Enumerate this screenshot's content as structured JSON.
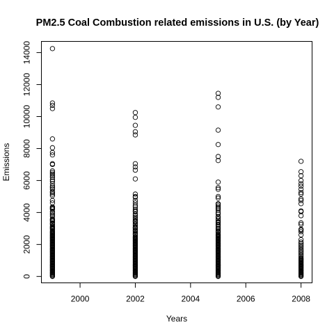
{
  "chart_data": {
    "type": "scatter",
    "title": "PM2.5 Coal Combustion related emissions in U.S. (by Year)",
    "xlabel": "Years",
    "ylabel": "Emissions",
    "xlim": [
      1998.6,
      2008.4
    ],
    "ylim": [
      -400,
      14700
    ],
    "x_ticks": [
      2000,
      2002,
      2004,
      2006,
      2008
    ],
    "y_ticks": [
      0,
      2000,
      4000,
      6000,
      8000,
      10000,
      12000,
      14000
    ],
    "grid": false,
    "marker": "open-circle",
    "series": [
      {
        "x_value": 1999,
        "values": [
          14250,
          10850,
          10700,
          10500,
          8600,
          8050,
          7750,
          7600,
          7050,
          7000,
          6600,
          6500,
          6400,
          6300,
          6200,
          6050,
          5950,
          5800,
          5650,
          5550,
          5450,
          5300,
          5250,
          5150,
          5050,
          4750,
          4600,
          4350,
          4300,
          4250,
          4200,
          4050,
          3950,
          3850,
          3750,
          3600,
          3550,
          3500,
          3450,
          3350,
          3300,
          3250,
          3150,
          3100,
          3050,
          3000,
          2950,
          2850,
          2800,
          2750,
          2700,
          2650,
          2600,
          2550,
          2500,
          2450,
          2400,
          2350,
          2300,
          2250,
          2200,
          2150,
          2100,
          2050,
          2000,
          1950,
          1900,
          1850,
          1800,
          1750,
          1700,
          1650,
          1600,
          1550,
          1500,
          1450,
          1400,
          1350,
          1300,
          1250,
          1200,
          1150,
          1100,
          1050,
          1000,
          950,
          900,
          850,
          800,
          750,
          700,
          650,
          600,
          550,
          500,
          450,
          400,
          350,
          300,
          250,
          200,
          150,
          100,
          50,
          0
        ]
      },
      {
        "x_value": 2002,
        "values": [
          10250,
          9950,
          9450,
          9050,
          8850,
          7050,
          6850,
          6650,
          6100,
          5150,
          5000,
          4950,
          4750,
          4600,
          4450,
          4350,
          4200,
          4100,
          4050,
          3900,
          3800,
          3700,
          3600,
          3500,
          3450,
          3400,
          3300,
          3200,
          3100,
          3050,
          3000,
          2900,
          2850,
          2800,
          2700,
          2650,
          2600,
          2500,
          2450,
          2400,
          2350,
          2300,
          2250,
          2200,
          2150,
          2100,
          2050,
          2000,
          1950,
          1900,
          1850,
          1800,
          1750,
          1700,
          1650,
          1600,
          1550,
          1500,
          1450,
          1400,
          1350,
          1300,
          1250,
          1200,
          1150,
          1100,
          1050,
          1000,
          950,
          900,
          850,
          800,
          750,
          700,
          650,
          600,
          550,
          500,
          450,
          400,
          350,
          300,
          250,
          200,
          150,
          100,
          50,
          0
        ]
      },
      {
        "x_value": 2005,
        "values": [
          11450,
          11200,
          10600,
          9150,
          8250,
          7500,
          7250,
          5900,
          5550,
          5450,
          5000,
          4900,
          4550,
          4500,
          4400,
          4300,
          4250,
          4150,
          4000,
          3900,
          3750,
          3700,
          3600,
          3500,
          3400,
          3350,
          3250,
          3200,
          3100,
          3000,
          2950,
          2850,
          2800,
          2750,
          2650,
          2600,
          2550,
          2500,
          2450,
          2400,
          2350,
          2300,
          2250,
          2200,
          2150,
          2100,
          2050,
          2000,
          1950,
          1900,
          1850,
          1800,
          1750,
          1700,
          1650,
          1600,
          1550,
          1500,
          1450,
          1400,
          1350,
          1300,
          1250,
          1200,
          1150,
          1100,
          1050,
          1000,
          950,
          900,
          850,
          800,
          750,
          700,
          650,
          600,
          550,
          500,
          450,
          400,
          350,
          300,
          250,
          200,
          150,
          100,
          50,
          0
        ]
      },
      {
        "x_value": 2008,
        "values": [
          7200,
          6550,
          6300,
          6000,
          5800,
          5650,
          5450,
          5250,
          5150,
          4850,
          4750,
          4550,
          4100,
          4050,
          3800,
          3350,
          3250,
          2950,
          2900,
          2800,
          2600,
          2300,
          2150,
          2050,
          1950,
          1850,
          1750,
          1650,
          1550,
          1450,
          1350,
          1250,
          1150,
          1100,
          1050,
          1000,
          950,
          900,
          850,
          800,
          750,
          700,
          650,
          600,
          550,
          500,
          450,
          400,
          350,
          300,
          250,
          200,
          150,
          100,
          50,
          0
        ]
      }
    ]
  }
}
